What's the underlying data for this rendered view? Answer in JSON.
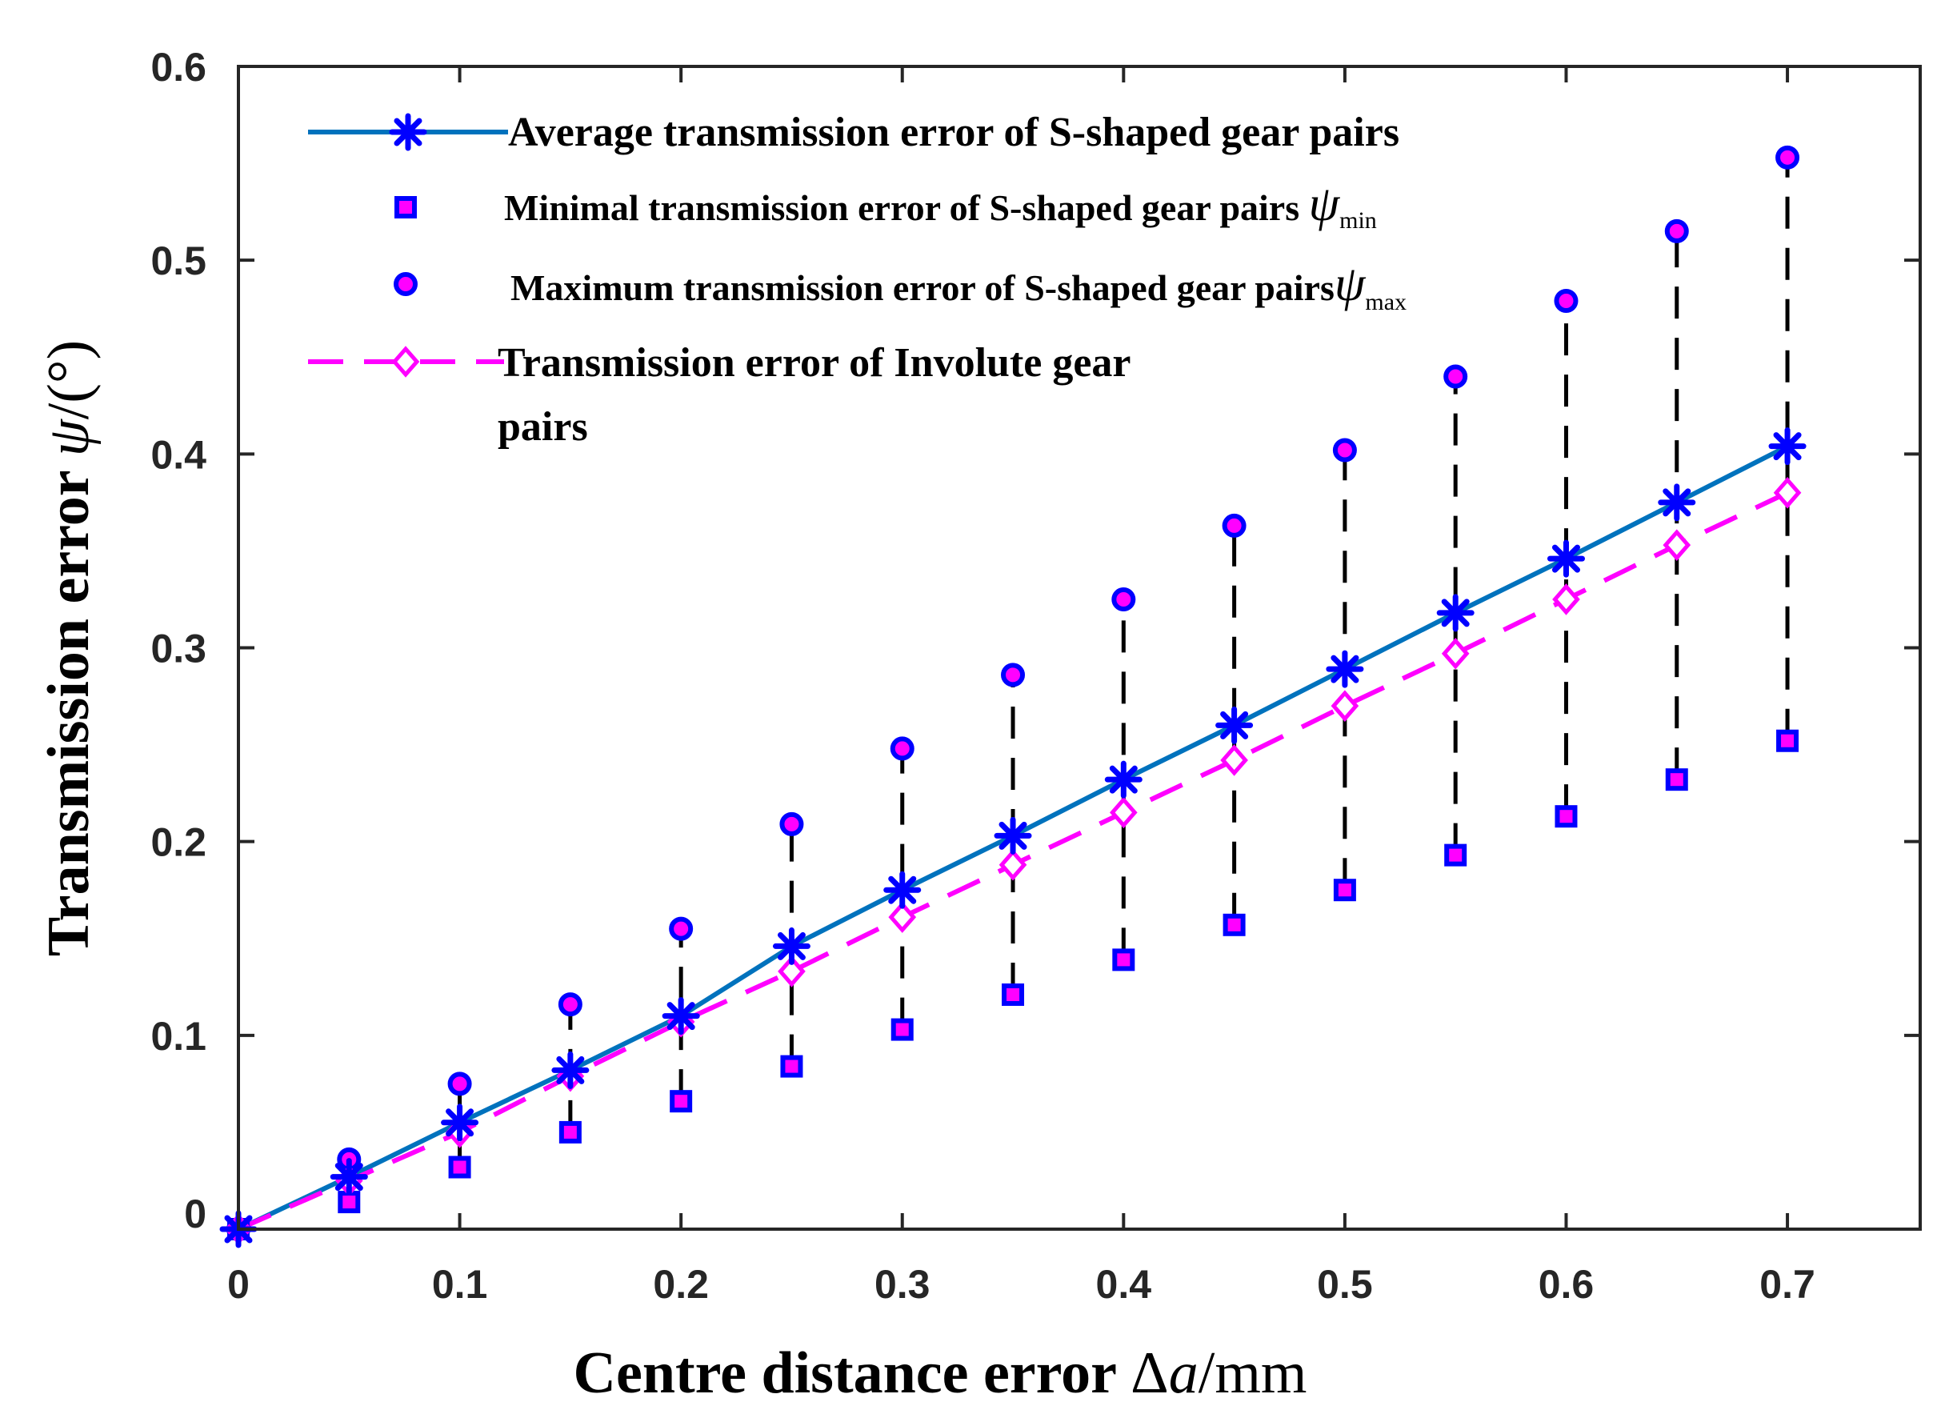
{
  "chart_data": {
    "type": "line",
    "title": "",
    "xlabel": {
      "text": "Centre distance error",
      "symbol_delta": "Δ",
      "symbol_var": "a",
      "unit": "/mm"
    },
    "ylabel": {
      "text": "Transmission error",
      "symbol": "ψ",
      "unit": "/(°)"
    },
    "xlim": [
      0,
      0.76
    ],
    "ylim": [
      0,
      0.6
    ],
    "xticks": [
      0,
      0.1,
      0.2,
      0.3,
      0.4,
      0.5,
      0.6,
      0.7
    ],
    "xtick_labels": [
      "0",
      "0.1",
      "0.2",
      "0.3",
      "0.4",
      "0.5",
      "0.6",
      "0.7"
    ],
    "yticks": [
      0,
      0.1,
      0.2,
      0.3,
      0.4,
      0.5,
      0.6
    ],
    "ytick_labels": [
      "0",
      "0.1",
      "0.2",
      "0.3",
      "0.4",
      "0.5",
      "0.6"
    ],
    "grid": false,
    "legend_position": "top-left",
    "x": [
      0,
      0.05,
      0.1,
      0.15,
      0.2,
      0.25,
      0.3,
      0.35,
      0.4,
      0.45,
      0.5,
      0.55,
      0.6,
      0.65,
      0.7
    ],
    "series": [
      {
        "name": "Average transmission error of S-shaped gear pairs",
        "marker": "asterisk",
        "line": "solid",
        "color": "#0072BD",
        "marker_color": "#0000FF",
        "values": [
          0,
          0.027,
          0.055,
          0.082,
          0.11,
          0.146,
          0.175,
          0.203,
          0.232,
          0.26,
          0.289,
          0.318,
          0.346,
          0.375,
          0.404
        ]
      },
      {
        "name": "Minimal transmission error of S-shaped gear pairs",
        "symbol": "ψ",
        "subscript": "min",
        "marker": "square",
        "line": "none",
        "color": "#0000FF",
        "fill": "#FF00FF",
        "values": [
          0,
          0.014,
          0.032,
          0.05,
          0.066,
          0.084,
          0.103,
          0.121,
          0.139,
          0.157,
          0.175,
          0.193,
          0.213,
          0.232,
          0.252
        ]
      },
      {
        "name": "Maximum transmission error of S-shaped gear pairs",
        "symbol": "ψ",
        "subscript": "max",
        "marker": "circle",
        "line": "none",
        "color": "#0000FF",
        "fill": "#FF00FF",
        "values": [
          0,
          0.036,
          0.075,
          0.116,
          0.155,
          0.209,
          0.248,
          0.286,
          0.325,
          0.363,
          0.402,
          0.44,
          0.479,
          0.515,
          0.553
        ]
      },
      {
        "name": "Transmission error of Involute gear pairs",
        "marker": "diamond",
        "line": "dashed",
        "color": "#FF00FF",
        "values": [
          0,
          0.025,
          0.05,
          0.079,
          0.107,
          0.133,
          0.161,
          0.188,
          0.215,
          0.242,
          0.27,
          0.297,
          0.325,
          0.353,
          0.38
        ]
      }
    ],
    "error_range_lines": {
      "style": "dashed",
      "color": "#000000",
      "from_series": "min",
      "to_series": "max"
    }
  }
}
